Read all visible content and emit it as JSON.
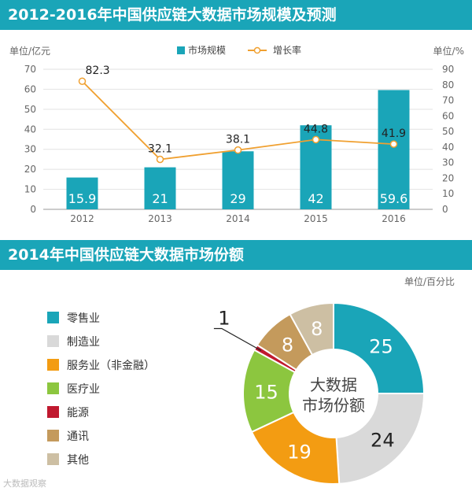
{
  "chart_data": [
    {
      "type": "bar+line",
      "title": "2012-2016年中国供应链大数据市场规模及预测",
      "categories": [
        "2012",
        "2013",
        "2014",
        "2015",
        "2016"
      ],
      "series": [
        {
          "name": "市场规模",
          "type": "bar",
          "axis": "left",
          "color": "#1aa5b8",
          "values": [
            15.9,
            21,
            29,
            42,
            59.6
          ],
          "labels": [
            "15.9",
            "21",
            "29",
            "42",
            "59.6"
          ]
        },
        {
          "name": "增长率",
          "type": "line",
          "axis": "right",
          "color": "#f0a030",
          "values": [
            82.3,
            32.1,
            38.1,
            44.8,
            41.9
          ],
          "labels": [
            "82.3",
            "32.1",
            "38.1",
            "44.8",
            "41.9"
          ]
        }
      ],
      "ylabel_left": "单位/亿元",
      "ylabel_right": "单位/%",
      "ylim_left": [
        0,
        70
      ],
      "ylim_right": [
        0,
        90
      ],
      "yticks_left": [
        "0",
        "10",
        "20",
        "30",
        "40",
        "50",
        "60",
        "70"
      ],
      "yticks_right": [
        "0",
        "10",
        "20",
        "30",
        "40",
        "50",
        "60",
        "70",
        "80",
        "90"
      ],
      "legend_position": "top-center"
    },
    {
      "type": "pie",
      "title": "2014年中国供应链大数据市场份额",
      "unit": "单位/百分比",
      "center_label": [
        "大数据",
        "市场份额"
      ],
      "slices": [
        {
          "label": "零售业",
          "value": 25,
          "text": "25",
          "color": "#1aa5b8"
        },
        {
          "label": "制造业",
          "value": 24,
          "text": "24",
          "color": "#d9d9d9"
        },
        {
          "label": "服务业（非金融）",
          "value": 19,
          "text": "19",
          "color": "#f39c12"
        },
        {
          "label": "医疗业",
          "value": 15,
          "text": "15",
          "color": "#8cc63f"
        },
        {
          "label": "能源",
          "value": 1,
          "text": "1",
          "color": "#c0192f"
        },
        {
          "label": "通讯",
          "value": 8,
          "text": "8",
          "color": "#c49a5c"
        },
        {
          "label": "其他",
          "value": 8,
          "text": "8",
          "color": "#cdbfa3"
        }
      ]
    }
  ],
  "watermark": "大数据观察"
}
